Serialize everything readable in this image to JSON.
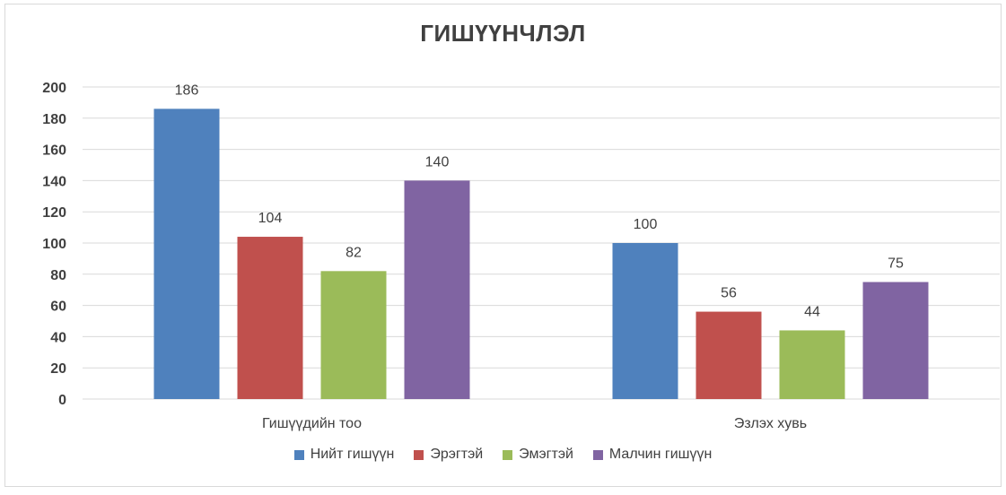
{
  "chart_data": {
    "type": "bar",
    "title": "ГИШҮҮНЧЛЭЛ",
    "categories": [
      "Гишүүдийн тоо",
      "Эзлэх хувь"
    ],
    "series": [
      {
        "name": "Нийт гишүүн",
        "color": "#4f81bd",
        "values": [
          186,
          100
        ]
      },
      {
        "name": "Эрэгтэй",
        "color": "#c0504d",
        "values": [
          104,
          56
        ]
      },
      {
        "name": "Эмэгтэй",
        "color": "#9bbb59",
        "values": [
          82,
          44
        ]
      },
      {
        "name": "Малчин гишүүн",
        "color": "#8064a2",
        "values": [
          140,
          75
        ]
      }
    ],
    "ylim": [
      0,
      200
    ],
    "yticks": [
      0,
      20,
      40,
      60,
      80,
      100,
      120,
      140,
      160,
      180,
      200
    ],
    "grid": true,
    "legend_position": "bottom",
    "xlabel": "",
    "ylabel": ""
  }
}
